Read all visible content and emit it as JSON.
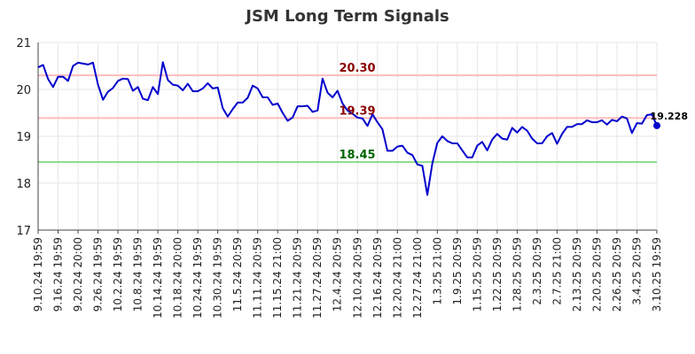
{
  "chart_data": {
    "type": "line",
    "title": "JSM Long Term Signals",
    "xlabel": "",
    "ylabel": "",
    "ylim": [
      17,
      21
    ],
    "yticks": [
      17,
      18,
      19,
      20,
      21
    ],
    "grid": true,
    "x_ticks": [
      "9.10.24 19:59",
      "9.16.24 19:59",
      "9.20.24 20:00",
      "9.26.24 19:59",
      "10.2.24 19:59",
      "10.8.24 19:59",
      "10.14.24 19:59",
      "10.18.24 20:00",
      "10.24.24 19:59",
      "10.30.24 19:59",
      "11.5.24 20:59",
      "11.11.24 20:59",
      "11.15.24 21:00",
      "11.21.24 20:59",
      "11.27.24 20:59",
      "12.4.24 20:59",
      "12.10.24 20:59",
      "12.16.24 20:59",
      "12.20.24 21:00",
      "12.27.24 21:00",
      "1.3.25 21:00",
      "1.9.25 20:59",
      "1.15.25 20:59",
      "1.22.25 20:59",
      "1.28.25 20:59",
      "2.3.25 20:59",
      "2.7.25 21:00",
      "2.13.25 20:59",
      "2.20.25 20:59",
      "2.26.25 20:59",
      "3.4.25 20:59",
      "3.10.25 19:59"
    ],
    "series": [
      {
        "color": "#0000cc",
        "values": [
          20.47,
          20.52,
          20.22,
          20.05,
          20.27,
          20.27,
          20.18,
          20.5,
          20.57,
          20.55,
          20.53,
          20.57,
          20.1,
          19.78,
          19.95,
          20.03,
          20.18,
          20.23,
          20.22,
          19.97,
          20.05,
          19.8,
          19.77,
          20.05,
          19.9,
          20.58,
          20.2,
          20.1,
          20.08,
          19.98,
          20.12,
          19.96,
          19.96,
          20.02,
          20.13,
          20.02,
          20.04,
          19.6,
          19.42,
          19.58,
          19.72,
          19.72,
          19.82,
          20.08,
          20.02,
          19.83,
          19.83,
          19.67,
          19.7,
          19.5,
          19.33,
          19.4,
          19.64,
          19.64,
          19.65,
          19.52,
          19.55,
          20.23,
          19.93,
          19.83,
          19.97,
          19.7,
          19.55,
          19.48,
          19.4,
          19.38,
          19.22,
          19.47,
          19.3,
          19.15,
          18.69,
          18.69,
          18.78,
          18.8,
          18.65,
          18.6,
          18.4,
          18.37,
          17.75,
          18.42,
          18.86,
          19.0,
          18.9,
          18.85,
          18.85,
          18.7,
          18.55,
          18.55,
          18.8,
          18.88,
          18.7,
          18.93,
          19.05,
          18.95,
          18.93,
          19.18,
          19.08,
          19.2,
          19.12,
          18.95,
          18.85,
          18.85,
          19.0,
          19.07,
          18.84,
          19.05,
          19.2,
          19.2,
          19.26,
          19.26,
          19.34,
          19.3,
          19.3,
          19.34,
          19.25,
          19.35,
          19.32,
          19.42,
          19.38,
          19.07,
          19.28,
          19.27,
          19.45,
          19.47,
          19.228
        ]
      }
    ],
    "lines": [
      {
        "value": 20.3,
        "label": "20.30",
        "line_color": "#ffbbbb",
        "label_color": "#8b0000"
      },
      {
        "value": 19.39,
        "label": "19.39",
        "line_color": "#ffbbbb",
        "label_color": "#8b0000"
      },
      {
        "value": 18.45,
        "label": "18.45",
        "line_color": "#88dd88",
        "label_color": "#006400"
      }
    ],
    "last_value_label": "19.228"
  }
}
